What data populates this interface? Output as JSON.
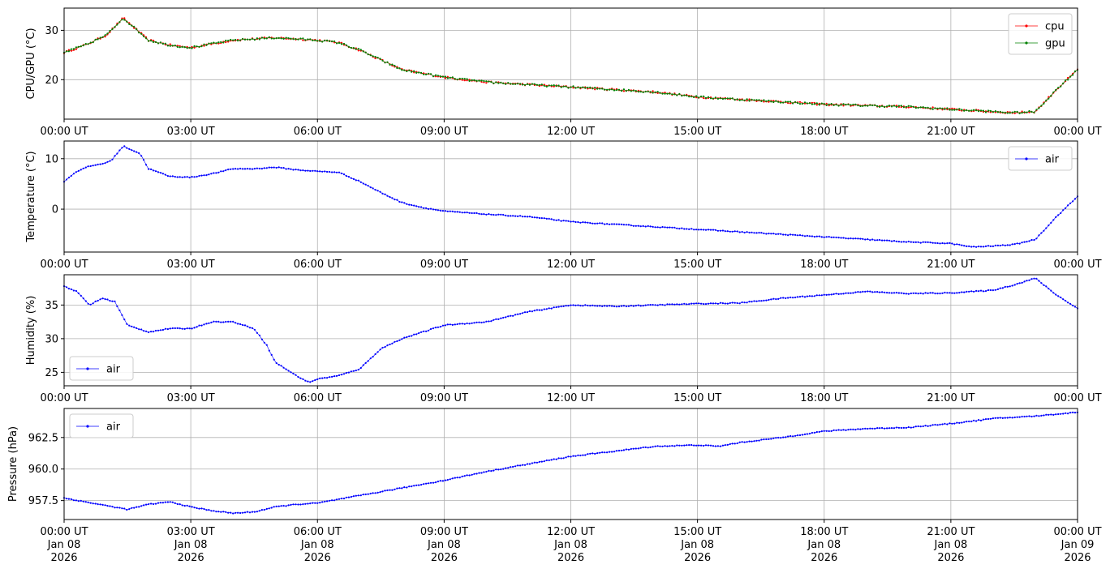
{
  "chart_data": [
    {
      "type": "scatter",
      "ylabel": "CPU/GPU (°C)",
      "ylim": [
        12,
        34.5
      ],
      "yticks": [
        20,
        30
      ],
      "grid": true,
      "legend_position": "top-right",
      "x_tick_labels": [
        "00:00 UT",
        "03:00 UT",
        "06:00 UT",
        "09:00 UT",
        "12:00 UT",
        "15:00 UT",
        "18:00 UT",
        "21:00 UT",
        "00:00 UT"
      ],
      "x_hours": [
        0,
        0.5,
        1,
        1.4,
        2,
        2.5,
        3,
        4,
        5,
        6,
        6.5,
        7,
        7.5,
        8,
        9,
        10,
        12,
        14,
        15,
        16,
        17,
        18,
        20,
        21,
        22,
        22.5,
        23,
        23.5,
        24
      ],
      "series": [
        {
          "name": "cpu",
          "color": "#ff0000",
          "values": [
            25.5,
            27,
            29,
            32.5,
            28,
            27,
            26.5,
            28,
            28.5,
            28,
            27.5,
            26,
            24,
            22,
            20.5,
            19.5,
            18.5,
            17.5,
            16.5,
            16,
            15.5,
            15,
            14.5,
            14,
            13.5,
            13.3,
            13.5,
            18,
            22
          ]
        },
        {
          "name": "gpu",
          "color": "#008000",
          "values": [
            25.5,
            27,
            29,
            32.5,
            28,
            27,
            26.5,
            28,
            28.5,
            28,
            27.5,
            26,
            24,
            22,
            20.5,
            19.5,
            18.5,
            17.5,
            16.5,
            16,
            15.5,
            15,
            14.5,
            14,
            13.5,
            13.3,
            13.5,
            18,
            22
          ]
        }
      ]
    },
    {
      "type": "scatter",
      "ylabel": "Temperature (°C)",
      "ylim": [
        -8.5,
        13.5
      ],
      "yticks": [
        0,
        10
      ],
      "grid": true,
      "legend_position": "top-right",
      "x_tick_labels": [
        "00:00 UT",
        "03:00 UT",
        "06:00 UT",
        "09:00 UT",
        "12:00 UT",
        "15:00 UT",
        "18:00 UT",
        "21:00 UT",
        "00:00 UT"
      ],
      "x_hours": [
        0,
        0.3,
        0.6,
        0.9,
        1.1,
        1.4,
        1.8,
        2,
        2.5,
        3,
        3.5,
        4,
        4.5,
        5,
        5.5,
        6,
        6.5,
        7,
        7.5,
        8,
        8.5,
        9,
        10,
        11,
        12,
        13,
        14,
        15,
        16,
        17,
        18,
        19,
        20,
        21,
        21.5,
        22,
        22.5,
        23,
        23.5,
        24
      ],
      "series": [
        {
          "name": "air",
          "color": "#0000ff",
          "values": [
            5.5,
            7.5,
            8.5,
            9,
            9.5,
            12.5,
            11,
            8,
            6.5,
            6.3,
            7,
            8,
            8,
            8.3,
            7.8,
            7.5,
            7.3,
            5.5,
            3.3,
            1.3,
            0.3,
            -0.4,
            -1,
            -1.5,
            -2.5,
            -3,
            -3.5,
            -4,
            -4.5,
            -5,
            -5.5,
            -6,
            -6.5,
            -6.8,
            -7.5,
            -7.3,
            -7,
            -6,
            -1.5,
            2.5
          ]
        }
      ]
    },
    {
      "type": "scatter",
      "ylabel": "Humidity (%)",
      "ylim": [
        23,
        39.5
      ],
      "yticks": [
        25,
        30,
        35
      ],
      "grid": true,
      "legend_position": "bottom-left",
      "x_tick_labels": [
        "00:00 UT",
        "03:00 UT",
        "06:00 UT",
        "09:00 UT",
        "12:00 UT",
        "15:00 UT",
        "18:00 UT",
        "21:00 UT",
        "00:00 UT"
      ],
      "x_hours": [
        0,
        0.3,
        0.6,
        0.9,
        1.2,
        1.5,
        2,
        2.5,
        3,
        3.5,
        4,
        4.5,
        4.8,
        5,
        5.5,
        5.8,
        6,
        6.5,
        7,
        7.5,
        8,
        8.5,
        9,
        10,
        11,
        12,
        13,
        14,
        15,
        16,
        17,
        18,
        19,
        20,
        21,
        22,
        22.5,
        23,
        23.5,
        24
      ],
      "series": [
        {
          "name": "air",
          "color": "#0000ff",
          "values": [
            37.8,
            37,
            35,
            36,
            35.5,
            32,
            31,
            31.5,
            31.5,
            32.5,
            32.5,
            31.5,
            29,
            26.5,
            24.5,
            23.5,
            24,
            24.5,
            25.5,
            28.5,
            30,
            31,
            32,
            32.5,
            34,
            35,
            34.8,
            35,
            35.2,
            35.3,
            36,
            36.5,
            37,
            36.7,
            36.8,
            37.2,
            38,
            39,
            36.5,
            34.5
          ]
        }
      ]
    },
    {
      "type": "scatter",
      "ylabel": "Pressure (hPa)",
      "ylim": [
        956,
        964.8
      ],
      "yticks": [
        957.5,
        960.0,
        962.5
      ],
      "grid": true,
      "legend_position": "top-left",
      "x_tick_labels": [
        "00:00 UT\nJan 08\n2026",
        "03:00 UT\nJan 08\n2026",
        "06:00 UT\nJan 08\n2026",
        "09:00 UT\nJan 08\n2026",
        "12:00 UT\nJan 08\n2026",
        "15:00 UT\nJan 08\n2026",
        "18:00 UT\nJan 08\n2026",
        "21:00 UT\nJan 08\n2026",
        "00:00 UT\nJan 09\n2026"
      ],
      "x_hours": [
        0,
        0.5,
        1,
        1.5,
        2,
        2.5,
        3,
        3.5,
        4,
        4.5,
        5,
        5.5,
        6,
        7,
        8,
        9,
        10,
        11,
        12,
        13,
        14,
        15,
        15.5,
        16,
        17,
        18,
        19,
        20,
        21,
        22,
        23,
        24
      ],
      "series": [
        {
          "name": "air",
          "color": "#0000ff",
          "values": [
            957.7,
            957.4,
            957.1,
            956.8,
            957.2,
            957.4,
            957.0,
            956.7,
            956.5,
            956.6,
            957.0,
            957.2,
            957.3,
            957.9,
            958.5,
            959.1,
            959.8,
            960.4,
            961.0,
            961.4,
            961.8,
            961.9,
            961.8,
            962.1,
            962.5,
            963.0,
            963.2,
            963.3,
            963.6,
            964.0,
            964.2,
            964.5
          ]
        }
      ]
    }
  ]
}
